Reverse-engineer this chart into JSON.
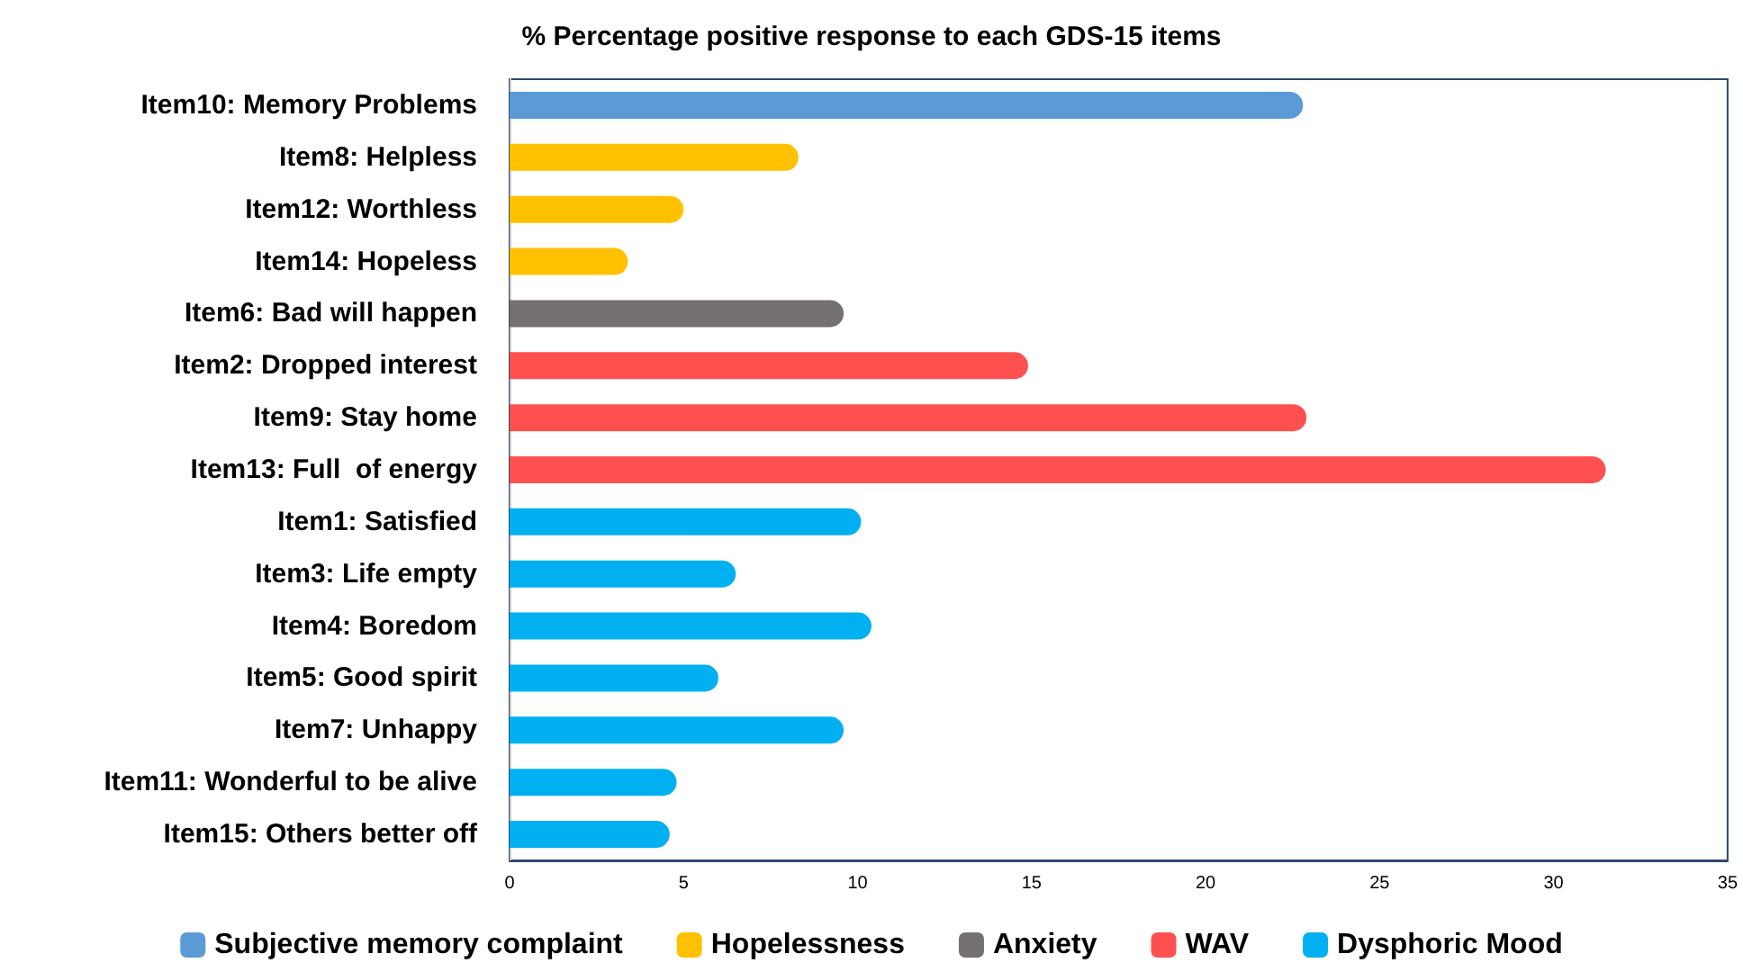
{
  "chart_data": {
    "type": "bar",
    "orientation": "horizontal",
    "stacked": true,
    "title": "% Percentage positive response to each GDS-15 items",
    "categories": [
      "Item10: Memory Problems",
      "Item8: Helpless",
      "Item12: Worthless",
      "Item14: Hopeless",
      "Item6: Bad will happen",
      "Item2: Dropped interest",
      "Item9: Stay home",
      "Item13: Full  of energy",
      "Item1: Satisfied",
      "Item3: Life empty",
      "Item4: Boredom",
      "Item5: Good spirit",
      "Item7: Unhappy",
      "Item11: Wonderful to be alive",
      "Item15: Others better off"
    ],
    "series": [
      {
        "name": "Subjective memory complaint",
        "color": "#5b9bd5",
        "values": [
          22.8,
          null,
          null,
          null,
          null,
          null,
          null,
          null,
          null,
          null,
          null,
          null,
          null,
          null,
          null
        ]
      },
      {
        "name": "Hopelessness",
        "color": "#ffc000",
        "values": [
          null,
          8.3,
          5.0,
          3.4,
          null,
          null,
          null,
          null,
          null,
          null,
          null,
          null,
          null,
          null,
          null
        ]
      },
      {
        "name": "Anxiety",
        "color": "#767171",
        "values": [
          null,
          null,
          null,
          null,
          9.6,
          null,
          null,
          null,
          null,
          null,
          null,
          null,
          null,
          null,
          null
        ]
      },
      {
        "name": "WAV",
        "color": "#ff5050",
        "values": [
          null,
          null,
          null,
          null,
          null,
          14.9,
          22.9,
          31.5,
          null,
          null,
          null,
          null,
          null,
          null,
          null
        ]
      },
      {
        "name": "Dysphoric Mood",
        "color": "#00b0f0",
        "values": [
          null,
          null,
          null,
          null,
          null,
          null,
          null,
          null,
          10.1,
          6.5,
          10.4,
          6.0,
          9.6,
          4.8,
          4.6
        ]
      }
    ],
    "xlim": [
      0,
      35
    ],
    "xticks": [
      0,
      5,
      10,
      15,
      20,
      25,
      30,
      35
    ],
    "grid": false,
    "legend": "bottom"
  }
}
